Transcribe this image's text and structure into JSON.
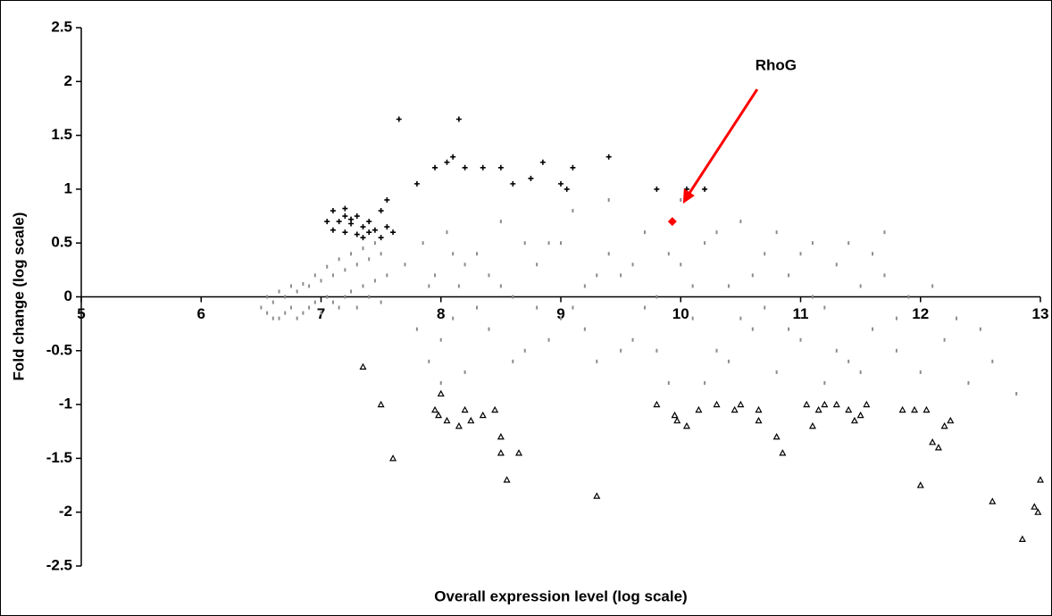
{
  "chart_data": {
    "type": "scatter",
    "xlabel": "Overall expression level (log scale)",
    "ylabel": "Fold change (log scale)",
    "xlim": [
      5,
      13
    ],
    "xticks": [
      5,
      6,
      7,
      8,
      9,
      10,
      11,
      12,
      13
    ],
    "ylim": [
      -2.5,
      2.5
    ],
    "yticks": [
      2.5,
      2,
      1.5,
      1,
      0.5,
      0,
      -0.5,
      -1,
      -1.5,
      -2,
      -2.5
    ],
    "grid": false,
    "series": [
      {
        "color": "#8c8c8c",
        "marker": "dash",
        "x": [
          6.5,
          6.55,
          6.6,
          6.65,
          6.7,
          6.75,
          6.8,
          6.85,
          6.9,
          6.95,
          7.0,
          7.05,
          7.1,
          7.15,
          7.2,
          7.25,
          7.3,
          7.35,
          7.4,
          7.45,
          7.5,
          7.55,
          6.6,
          6.7,
          6.8,
          6.9,
          7.0,
          7.1,
          7.2,
          7.3,
          7.4,
          7.5,
          6.55,
          6.65,
          6.75,
          6.85,
          6.95,
          7.05,
          7.15,
          7.25,
          7.35,
          7.45,
          7.7,
          7.8,
          7.85,
          7.9,
          7.95,
          8.0,
          8.05,
          8.1,
          8.15,
          8.2,
          8.3,
          8.4,
          8.5,
          8.6,
          8.7,
          8.8,
          8.9,
          9.0,
          9.1,
          9.2,
          9.3,
          9.4,
          9.5,
          9.6,
          9.7,
          9.8,
          9.9,
          10.0,
          10.1,
          10.2,
          10.3,
          10.4,
          10.5,
          10.6,
          10.7,
          10.8,
          10.9,
          11.0,
          11.1,
          11.2,
          11.3,
          11.4,
          11.5,
          11.6,
          11.7,
          11.8,
          11.9,
          12.0,
          12.1,
          12.2,
          12.3,
          12.4,
          12.5,
          12.6,
          12.8,
          8.0,
          8.2,
          8.4,
          8.6,
          8.8,
          9.0,
          9.2,
          9.4,
          9.6,
          9.8,
          10.0,
          10.2,
          10.4,
          10.6,
          10.8,
          11.0,
          11.2,
          11.4,
          11.6,
          11.8,
          7.9,
          8.1,
          8.3,
          8.5,
          8.7,
          8.9,
          9.1,
          9.3,
          9.5,
          9.7,
          9.9,
          10.1,
          10.3,
          10.5,
          10.7,
          10.9,
          11.1,
          11.3,
          11.5,
          11.7
        ],
        "values": [
          -0.1,
          -0.15,
          -0.05,
          -0.2,
          0.0,
          -0.1,
          0.05,
          -0.15,
          0.1,
          -0.05,
          0.15,
          0.0,
          0.2,
          -0.1,
          0.25,
          0.05,
          0.3,
          0.1,
          0.35,
          0.15,
          0.4,
          0.2,
          -0.2,
          -0.15,
          -0.2,
          -0.1,
          -0.15,
          -0.05,
          0.0,
          -0.1,
          0.0,
          -0.05,
          0.0,
          0.05,
          0.1,
          0.12,
          0.2,
          0.28,
          0.35,
          0.4,
          0.45,
          0.5,
          0.3,
          -0.3,
          0.5,
          -0.6,
          0.2,
          -0.4,
          0.6,
          -0.2,
          0.1,
          -0.7,
          0.4,
          -0.3,
          0.7,
          0.0,
          -0.5,
          0.3,
          0.5,
          -0.2,
          0.8,
          0.1,
          -0.6,
          0.4,
          0.2,
          -0.4,
          0.6,
          0.0,
          -0.8,
          0.3,
          -0.2,
          0.5,
          -0.5,
          0.1,
          0.7,
          -0.3,
          0.4,
          -0.7,
          0.2,
          -0.4,
          0.5,
          -0.1,
          0.3,
          -0.6,
          0.1,
          -0.3,
          0.2,
          -0.5,
          0.0,
          -0.7,
          0.1,
          -0.4,
          -0.2,
          -0.8,
          -0.3,
          -0.6,
          -0.9,
          -0.8,
          0.3,
          0.2,
          -0.6,
          -0.1,
          0.5,
          -0.3,
          0.9,
          0.3,
          -0.5,
          0.9,
          -0.8,
          -0.6,
          0.2,
          0.6,
          0.4,
          -0.8,
          0.5,
          0.4,
          -0.2,
          0.1,
          0.4,
          -0.1,
          0.1,
          0.5,
          -0.4,
          -0.1,
          0.2,
          -0.5,
          -0.1,
          0.4,
          0.1,
          0.6,
          -0.2,
          -0.1,
          -0.3,
          0.0,
          -0.5,
          -0.7,
          0.6
        ]
      },
      {
        "color": "#000000",
        "marker": "plus",
        "x": [
          7.65,
          8.15,
          8.1,
          8.05,
          7.95,
          7.8,
          8.2,
          8.35,
          8.5,
          8.6,
          8.75,
          8.85,
          9.1,
          9.4,
          9.0,
          9.05,
          9.8,
          10.05,
          10.2,
          7.5,
          7.55,
          7.1,
          7.2,
          7.3,
          7.15,
          7.25,
          7.35,
          7.4,
          7.2,
          7.3,
          7.45,
          7.5,
          7.6,
          7.25,
          7.05,
          7.1,
          7.4,
          7.35,
          7.55,
          7.2
        ],
        "values": [
          1.65,
          1.65,
          1.3,
          1.25,
          1.2,
          1.05,
          1.2,
          1.2,
          1.2,
          1.05,
          1.1,
          1.25,
          1.2,
          1.3,
          1.05,
          1.0,
          1.0,
          1.0,
          1.0,
          0.8,
          0.9,
          0.8,
          0.82,
          0.75,
          0.7,
          0.68,
          0.65,
          0.6,
          0.6,
          0.58,
          0.62,
          0.55,
          0.6,
          0.72,
          0.7,
          0.62,
          0.7,
          0.55,
          0.65,
          0.75
        ]
      },
      {
        "color": "#000000",
        "marker": "triangle",
        "x": [
          7.35,
          7.5,
          7.6,
          7.95,
          7.98,
          8.0,
          8.05,
          8.15,
          8.2,
          8.25,
          8.35,
          8.45,
          8.5,
          8.5,
          8.55,
          8.65,
          9.3,
          9.8,
          9.95,
          9.97,
          10.05,
          10.15,
          10.3,
          10.45,
          10.5,
          10.65,
          10.65,
          10.8,
          10.85,
          11.05,
          11.1,
          11.15,
          11.2,
          11.3,
          11.4,
          11.45,
          11.5,
          11.55,
          11.85,
          11.95,
          12.0,
          12.05,
          12.1,
          12.15,
          12.2,
          12.25,
          12.6,
          12.85,
          12.95,
          12.98,
          13.0
        ],
        "values": [
          -0.65,
          -1.0,
          -1.5,
          -1.05,
          -1.1,
          -0.9,
          -1.15,
          -1.2,
          -1.05,
          -1.15,
          -1.1,
          -1.05,
          -1.3,
          -1.45,
          -1.7,
          -1.45,
          -1.85,
          -1.0,
          -1.1,
          -1.15,
          -1.2,
          -1.05,
          -1.0,
          -1.05,
          -1.0,
          -1.15,
          -1.05,
          -1.3,
          -1.45,
          -1.0,
          -1.2,
          -1.05,
          -1.0,
          -1.0,
          -1.05,
          -1.15,
          -1.1,
          -1.0,
          -1.05,
          -1.05,
          -1.75,
          -1.05,
          -1.35,
          -1.4,
          -1.2,
          -1.15,
          -1.9,
          -2.25,
          -1.95,
          -2.0,
          -1.7
        ]
      },
      {
        "name": "RhoG",
        "color": "#ff0000",
        "marker": "diamond",
        "x": [
          9.93
        ],
        "values": [
          0.7
        ]
      }
    ]
  }
}
